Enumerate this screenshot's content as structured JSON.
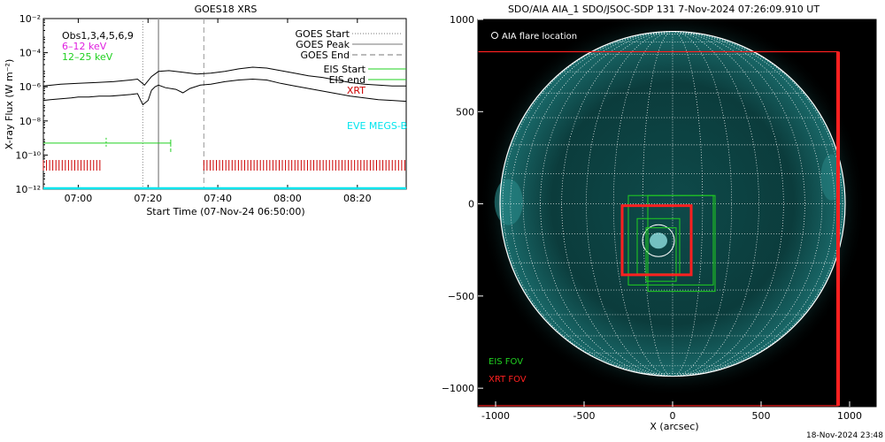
{
  "left_panel": {
    "title": "GOES18 XRS",
    "ylabel": "X-ray Flux (W m⁻²)",
    "xlabel": "Start Time (07-Nov-24 06:50:00)",
    "legend_top_left": [
      "GOES Start",
      "GOES Peak",
      "GOES End",
      "EIS Start",
      "EIS end",
      "XRT"
    ],
    "overlay_label": "Obs1,3,4,5,6,9",
    "energy_labels": [
      {
        "text": "6–12 keV",
        "color": "#e020e0"
      },
      {
        "text": "12–25 keV",
        "color": "#20d020"
      }
    ],
    "eve_label": "EVE MEGS-B",
    "colors": {
      "eis": "#20d020",
      "xrt": "#cc0000",
      "eve": "#00e5ee"
    }
  },
  "right_panel": {
    "title": "SDO/AIA AIA_1 SDO/JSOC-SDP 131  7-Nov-2024 07:26:09.910 UT",
    "legend_flare": "AIA flare location",
    "eis_fov_label": "EIS FOV",
    "xrt_fov_label": "XRT FOV",
    "xlabel": "X (arcsec)",
    "timestamp": "18-Nov-2024 23:48",
    "colors": {
      "eis": "#20d020",
      "xrt": "#ff2020",
      "grid": "#ffffff",
      "sun": "#0c5050"
    }
  },
  "chart_data": [
    {
      "type": "line",
      "title": "GOES18 XRS",
      "xlabel": "Start Time (07-Nov-24 06:50:00)",
      "ylabel": "X-ray Flux (W m⁻²)",
      "x_unit": "minutes after 06:50",
      "xlim": [
        0,
        104
      ],
      "ylim_log10": [
        -12,
        -2
      ],
      "y_scale": "log",
      "xticks": [
        {
          "x": 10,
          "label": "07:00"
        },
        {
          "x": 30,
          "label": "07:20"
        },
        {
          "x": 50,
          "label": "07:40"
        },
        {
          "x": 70,
          "label": "08:00"
        },
        {
          "x": 90,
          "label": "08:20"
        }
      ],
      "yticks": [
        {
          "exp": -2,
          "label": "10⁻²"
        },
        {
          "exp": -4,
          "label": "10⁻⁴"
        },
        {
          "exp": -6,
          "label": "10⁻⁶"
        },
        {
          "exp": -8,
          "label": "10⁻⁸"
        },
        {
          "exp": -10,
          "label": "10⁻¹⁰"
        },
        {
          "exp": -12,
          "label": "10⁻¹²"
        }
      ],
      "series": [
        {
          "name": "6–12 keV",
          "log10_y": [
            [
              0,
              -5.95
            ],
            [
              5,
              -5.85
            ],
            [
              10,
              -5.8
            ],
            [
              15,
              -5.75
            ],
            [
              20,
              -5.7
            ],
            [
              25,
              -5.6
            ],
            [
              27,
              -5.55
            ],
            [
              29,
              -5.9
            ],
            [
              31,
              -5.4
            ],
            [
              33,
              -5.1
            ],
            [
              36,
              -5.05
            ],
            [
              40,
              -5.15
            ],
            [
              44,
              -5.25
            ],
            [
              48,
              -5.2
            ],
            [
              52,
              -5.1
            ],
            [
              56,
              -4.95
            ],
            [
              60,
              -4.85
            ],
            [
              64,
              -4.9
            ],
            [
              68,
              -5.05
            ],
            [
              72,
              -5.2
            ],
            [
              76,
              -5.35
            ],
            [
              80,
              -5.45
            ],
            [
              84,
              -5.6
            ],
            [
              88,
              -5.75
            ],
            [
              92,
              -5.85
            ],
            [
              96,
              -5.9
            ],
            [
              100,
              -5.95
            ],
            [
              104,
              -5.95
            ]
          ]
        },
        {
          "name": "12–25 keV",
          "log10_y": [
            [
              0,
              -6.8
            ],
            [
              2,
              -6.75
            ],
            [
              5,
              -6.7
            ],
            [
              8,
              -6.65
            ],
            [
              10,
              -6.6
            ],
            [
              13,
              -6.6
            ],
            [
              16,
              -6.55
            ],
            [
              19,
              -6.55
            ],
            [
              22,
              -6.5
            ],
            [
              25,
              -6.45
            ],
            [
              27,
              -6.4
            ],
            [
              28.5,
              -7.05
            ],
            [
              30,
              -6.8
            ],
            [
              31,
              -6.2
            ],
            [
              32,
              -6.0
            ],
            [
              33,
              -5.9
            ],
            [
              35,
              -6.05
            ],
            [
              38,
              -6.15
            ],
            [
              40,
              -6.35
            ],
            [
              42,
              -6.1
            ],
            [
              45,
              -5.9
            ],
            [
              48,
              -5.85
            ],
            [
              52,
              -5.7
            ],
            [
              56,
              -5.6
            ],
            [
              60,
              -5.55
            ],
            [
              64,
              -5.6
            ],
            [
              68,
              -5.8
            ],
            [
              72,
              -5.95
            ],
            [
              76,
              -6.1
            ],
            [
              80,
              -6.25
            ],
            [
              84,
              -6.4
            ],
            [
              88,
              -6.55
            ],
            [
              92,
              -6.65
            ],
            [
              96,
              -6.75
            ],
            [
              100,
              -6.8
            ],
            [
              104,
              -6.85
            ]
          ]
        }
      ],
      "markers": {
        "goes_start": 28.5,
        "goes_peak": 33,
        "goes_end": 46,
        "eis_start": 0,
        "eis_end": 36.5,
        "eis_level_log10": -9.3,
        "xrt_ranges": [
          [
            0,
            16.5
          ],
          [
            46,
            104
          ]
        ],
        "xrt_level_log10": -10.6,
        "eve_level_log10": -12
      }
    },
    {
      "type": "scatter",
      "title": "SDO/AIA AIA_1 SDO/JSOC-SDP 131  7-Nov-2024 07:26:09.910 UT",
      "xlabel": "X (arcsec)",
      "ylabel": "",
      "xlim": [
        -1100,
        1150
      ],
      "ylim": [
        -1100,
        1000
      ],
      "xticks": [
        -1000,
        -500,
        0,
        500,
        1000
      ],
      "yticks": [
        1000,
        500,
        0,
        -500,
        -1000
      ],
      "solar_radius_arcsec": 975,
      "flare_location": {
        "x": -80,
        "y": -200,
        "r": 90
      },
      "eis_fov": [
        {
          "x0": -250,
          "y0": -440,
          "x1": 230,
          "y1": 45
        },
        {
          "x0": -140,
          "y0": -475,
          "x1": 240,
          "y1": 45
        },
        {
          "x0": -200,
          "y0": -380,
          "x1": 40,
          "y1": -80
        },
        {
          "x0": -150,
          "y0": -420,
          "x1": 20,
          "y1": -130
        }
      ],
      "xrt_fov": [
        {
          "x0": -1110,
          "y0": -1095,
          "x1": 935,
          "y1": 825,
          "thick_right": true
        },
        {
          "x0": -285,
          "y0": -385,
          "x1": 105,
          "y1": -10
        }
      ]
    }
  ]
}
